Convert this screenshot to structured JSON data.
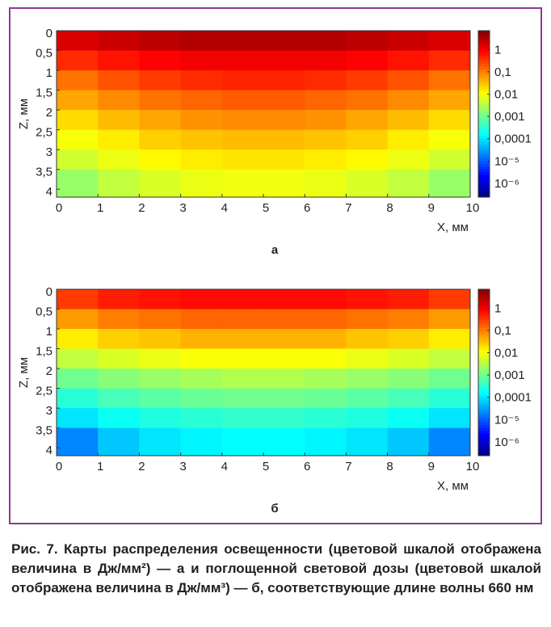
{
  "chart_data": [
    {
      "type": "heatmap",
      "label": "а",
      "xlabel": "X, мм",
      "ylabel": "Z, мм",
      "x": [
        0.5,
        1.5,
        2.5,
        3.5,
        4.5,
        5.5,
        6.5,
        7.5,
        8.5,
        9.5
      ],
      "z": [
        0.25,
        0.75,
        1.25,
        1.75,
        2.25,
        2.75,
        3.25,
        3.75
      ],
      "values": [
        [
          1.5,
          2,
          2.5,
          3,
          3,
          3,
          3,
          2.5,
          2,
          1.5
        ],
        [
          0.4,
          0.6,
          0.8,
          1,
          1,
          1,
          1,
          0.8,
          0.6,
          0.4
        ],
        [
          0.12,
          0.2,
          0.3,
          0.4,
          0.45,
          0.45,
          0.4,
          0.3,
          0.2,
          0.12
        ],
        [
          0.05,
          0.08,
          0.12,
          0.15,
          0.18,
          0.18,
          0.15,
          0.12,
          0.08,
          0.05
        ],
        [
          0.02,
          0.035,
          0.05,
          0.07,
          0.08,
          0.08,
          0.07,
          0.05,
          0.035,
          0.02
        ],
        [
          0.01,
          0.015,
          0.025,
          0.03,
          0.035,
          0.035,
          0.03,
          0.025,
          0.015,
          0.01
        ],
        [
          0.005,
          0.008,
          0.012,
          0.015,
          0.017,
          0.017,
          0.015,
          0.012,
          0.008,
          0.005
        ],
        [
          0.002,
          0.004,
          0.006,
          0.008,
          0.009,
          0.009,
          0.008,
          0.006,
          0.004,
          0.002
        ]
      ],
      "xlim": [
        0,
        10
      ],
      "xticks": [
        0,
        1,
        2,
        3,
        4,
        5,
        6,
        7,
        8,
        9,
        10
      ],
      "ylim": [
        0,
        4.2
      ],
      "yticks": [
        0,
        {
          "value": 0.5,
          "label": "0,5"
        },
        1,
        {
          "value": 1.5,
          "label": "1,5"
        },
        2,
        {
          "value": 2.5,
          "label": "2,5"
        },
        3,
        {
          "value": 3.5,
          "label": "3,5"
        },
        4
      ],
      "colormap": "jet",
      "colorbar_scale": "log",
      "clim": [
        2.4e-07,
        7
      ],
      "cticks": [
        1,
        {
          "value": 0.1,
          "label": "0,1"
        },
        {
          "value": 0.01,
          "label": "0,01"
        },
        {
          "value": 0.001,
          "label": "0,001"
        },
        {
          "value": 0.0001,
          "label": "0,0001"
        },
        {
          "value": 1e-05,
          "label": "10⁻⁵"
        },
        {
          "value": 1e-06,
          "label": "10⁻⁶"
        }
      ]
    },
    {
      "type": "heatmap",
      "label": "б",
      "xlabel": "X, мм",
      "ylabel": "Z, мм",
      "x": [
        0.5,
        1.5,
        2.5,
        3.5,
        4.5,
        5.5,
        6.5,
        7.5,
        8.5,
        9.5
      ],
      "z": [
        0.25,
        0.75,
        1.25,
        1.75,
        2.25,
        2.75,
        3.25,
        3.75
      ],
      "values": [
        [
          0.3,
          0.5,
          0.6,
          0.7,
          0.7,
          0.7,
          0.7,
          0.6,
          0.5,
          0.3
        ],
        [
          0.06,
          0.1,
          0.12,
          0.15,
          0.15,
          0.15,
          0.15,
          0.12,
          0.1,
          0.06
        ],
        [
          0.015,
          0.025,
          0.03,
          0.04,
          0.04,
          0.04,
          0.04,
          0.03,
          0.025,
          0.015
        ],
        [
          0.004,
          0.006,
          0.008,
          0.01,
          0.01,
          0.01,
          0.01,
          0.008,
          0.006,
          0.004
        ],
        [
          0.001,
          0.0015,
          0.002,
          0.0025,
          0.003,
          0.003,
          0.0025,
          0.002,
          0.0015,
          0.001
        ],
        [
          0.0003,
          0.0005,
          0.0007,
          0.0009,
          0.001,
          0.001,
          0.0009,
          0.0007,
          0.0005,
          0.0003
        ],
        [
          0.0001,
          0.00018,
          0.00025,
          0.0003,
          0.00035,
          0.00035,
          0.0003,
          0.00025,
          0.00018,
          0.0001
        ],
        [
          2e-05,
          6e-05,
          0.0001,
          0.00013,
          0.00015,
          0.00015,
          0.00013,
          0.0001,
          6e-05,
          2e-05
        ]
      ],
      "xlim": [
        0,
        10
      ],
      "xticks": [
        0,
        1,
        2,
        3,
        4,
        5,
        6,
        7,
        8,
        9,
        10
      ],
      "ylim": [
        0,
        4.2
      ],
      "yticks": [
        0,
        {
          "value": 0.5,
          "label": "0,5"
        },
        1,
        {
          "value": 1.5,
          "label": "1,5"
        },
        2,
        {
          "value": 2.5,
          "label": "2,5"
        },
        3,
        {
          "value": 3.5,
          "label": "3,5"
        },
        4
      ],
      "colormap": "jet",
      "colorbar_scale": "log",
      "clim": [
        2.4e-07,
        7
      ],
      "cticks": [
        1,
        {
          "value": 0.1,
          "label": "0,1"
        },
        {
          "value": 0.01,
          "label": "0,01"
        },
        {
          "value": 0.001,
          "label": "0,001"
        },
        {
          "value": 0.0001,
          "label": "0,0001"
        },
        {
          "value": 1e-05,
          "label": "10⁻⁵"
        },
        {
          "value": 1e-06,
          "label": "10⁻⁶"
        }
      ]
    }
  ],
  "caption": "Рис. 7. Карты распределения освещенности (цветовой шкалой отображена величина в Дж/мм²) — а и поглощенной световой дозы (цветовой шкалой отображена величина в Дж/мм³) — б, соответствующие длине волны 660 нм"
}
